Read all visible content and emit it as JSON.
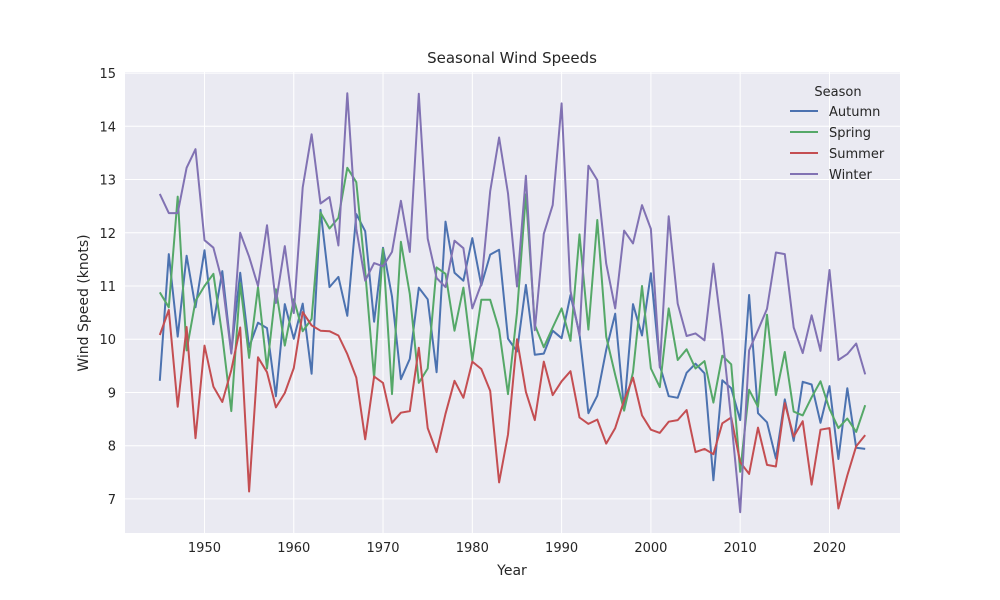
{
  "chart_data": {
    "type": "line",
    "title": "Seasonal Wind Speeds",
    "xlabel": "Year",
    "ylabel": "Wind Speed (knots)",
    "xlim": [
      1941.1,
      2027.9
    ],
    "ylim": [
      6.36,
      15.02
    ],
    "xticks": [
      1950,
      1960,
      1970,
      1980,
      1990,
      2000,
      2010,
      2020
    ],
    "yticks": [
      7,
      8,
      9,
      10,
      11,
      12,
      13,
      14,
      15
    ],
    "grid": true,
    "legend": {
      "title": "Season",
      "position": "top-right"
    },
    "x": [
      1945,
      1946,
      1947,
      1948,
      1949,
      1950,
      1951,
      1952,
      1953,
      1954,
      1955,
      1956,
      1957,
      1958,
      1959,
      1960,
      1961,
      1962,
      1963,
      1964,
      1965,
      1966,
      1967,
      1968,
      1969,
      1970,
      1971,
      1972,
      1973,
      1974,
      1975,
      1976,
      1977,
      1978,
      1979,
      1980,
      1981,
      1982,
      1983,
      1984,
      1985,
      1986,
      1987,
      1988,
      1989,
      1990,
      1991,
      1992,
      1993,
      1994,
      1995,
      1996,
      1997,
      1998,
      1999,
      2000,
      2001,
      2002,
      2003,
      2004,
      2005,
      2006,
      2007,
      2008,
      2009,
      2010,
      2011,
      2012,
      2013,
      2014,
      2015,
      2016,
      2017,
      2018,
      2019,
      2020,
      2021,
      2022,
      2023,
      2024
    ],
    "series": [
      {
        "name": "Autumn",
        "color": "#4c72b0",
        "values": [
          9.22,
          11.6,
          10.05,
          11.57,
          10.6,
          11.67,
          10.28,
          11.28,
          9.75,
          11.25,
          9.85,
          10.31,
          10.21,
          8.93,
          10.66,
          10.01,
          10.67,
          9.35,
          12.43,
          10.98,
          11.17,
          10.44,
          12.35,
          12.03,
          10.33,
          11.72,
          10.8,
          9.25,
          9.63,
          10.97,
          10.75,
          9.38,
          12.21,
          11.25,
          11.1,
          11.9,
          11.01,
          11.59,
          11.68,
          10.01,
          9.77,
          11.02,
          9.71,
          9.73,
          10.16,
          10.02,
          10.83,
          10.1,
          8.61,
          8.94,
          9.8,
          10.48,
          8.67,
          10.66,
          10.07,
          11.24,
          9.51,
          8.93,
          8.9,
          9.37,
          9.54,
          9.36,
          7.35,
          9.23,
          9.08,
          8.48,
          10.83,
          8.61,
          8.44,
          7.76,
          8.87,
          8.09,
          9.2,
          9.15,
          8.43,
          9.12,
          7.75,
          9.08,
          7.96,
          7.94
        ]
      },
      {
        "name": "Spring",
        "color": "#55a868",
        "values": [
          10.88,
          10.6,
          12.68,
          9.79,
          10.72,
          11.0,
          11.23,
          10.06,
          8.65,
          11.05,
          9.65,
          10.98,
          9.45,
          10.94,
          9.88,
          10.75,
          10.15,
          10.38,
          12.38,
          12.08,
          12.28,
          13.22,
          12.95,
          11.27,
          9.27,
          11.7,
          8.97,
          11.83,
          10.85,
          9.18,
          9.45,
          11.35,
          11.23,
          10.16,
          10.97,
          9.6,
          10.74,
          10.74,
          10.18,
          8.97,
          10.5,
          12.72,
          10.27,
          9.85,
          10.22,
          10.58,
          9.97,
          11.97,
          10.18,
          12.24,
          10.05,
          9.33,
          8.66,
          9.38,
          11.0,
          9.45,
          9.1,
          10.58,
          9.61,
          9.81,
          9.45,
          9.59,
          8.81,
          9.69,
          9.53,
          7.51,
          9.05,
          8.73,
          10.46,
          8.95,
          9.76,
          8.64,
          8.57,
          8.91,
          9.21,
          8.69,
          8.33,
          8.51,
          8.26,
          8.76
        ]
      },
      {
        "name": "Summer",
        "color": "#c44e52",
        "values": [
          10.08,
          10.55,
          8.73,
          10.23,
          8.14,
          9.88,
          9.11,
          8.82,
          9.42,
          10.22,
          7.14,
          9.66,
          9.38,
          8.72,
          8.99,
          9.46,
          10.51,
          10.26,
          10.16,
          10.15,
          10.07,
          9.72,
          9.28,
          8.12,
          9.3,
          9.18,
          8.43,
          8.62,
          8.65,
          9.84,
          8.33,
          7.88,
          8.6,
          9.22,
          8.9,
          9.58,
          9.44,
          9.03,
          7.31,
          8.21,
          10.0,
          9.01,
          8.48,
          9.58,
          8.95,
          9.21,
          9.4,
          8.53,
          8.41,
          8.49,
          8.04,
          8.33,
          8.85,
          9.28,
          8.57,
          8.3,
          8.24,
          8.45,
          8.48,
          8.67,
          7.88,
          7.94,
          7.84,
          8.42,
          8.53,
          7.69,
          7.47,
          8.34,
          7.64,
          7.61,
          8.8,
          8.17,
          8.46,
          7.27,
          8.3,
          8.33,
          6.82,
          7.44,
          7.99,
          8.2
        ]
      },
      {
        "name": "Winter",
        "color": "#8172b3",
        "values": [
          12.73,
          12.37,
          12.37,
          13.22,
          13.57,
          11.86,
          11.72,
          11.08,
          9.73,
          12.0,
          11.55,
          11.0,
          12.14,
          10.68,
          11.75,
          10.49,
          12.85,
          13.85,
          12.55,
          12.67,
          11.76,
          14.62,
          12.07,
          11.1,
          11.43,
          11.37,
          11.64,
          12.6,
          11.64,
          14.61,
          11.89,
          11.15,
          10.98,
          11.85,
          11.71,
          10.58,
          11.04,
          12.78,
          13.79,
          12.74,
          10.99,
          13.07,
          10.17,
          11.98,
          12.52,
          14.43,
          10.91,
          10.07,
          13.26,
          12.99,
          11.42,
          10.58,
          12.04,
          11.8,
          12.52,
          12.07,
          9.47,
          12.31,
          10.67,
          10.06,
          10.11,
          9.98,
          11.42,
          10.08,
          8.49,
          6.75,
          9.79,
          10.17,
          10.57,
          11.63,
          11.6,
          10.22,
          9.74,
          10.45,
          9.78,
          11.3,
          9.61,
          9.72,
          9.92,
          9.34
        ]
      }
    ]
  }
}
